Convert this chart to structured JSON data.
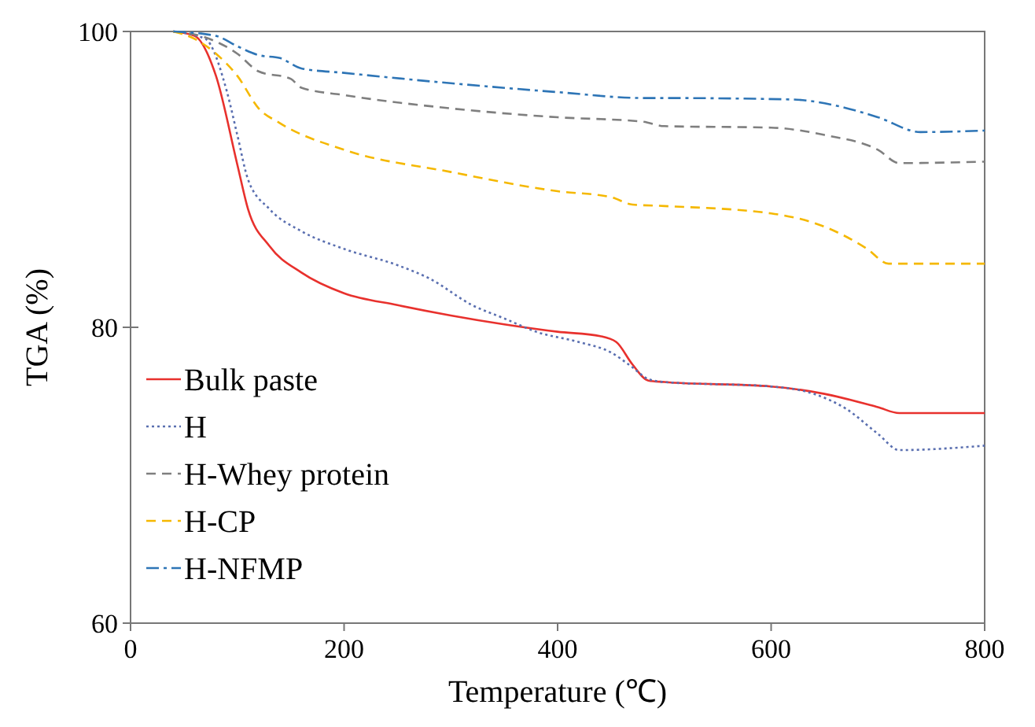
{
  "chart_data": {
    "type": "line",
    "xlabel": "Temperature (℃)",
    "ylabel": "TGA (%)",
    "xlim": [
      0,
      800
    ],
    "ylim": [
      60,
      100
    ],
    "xticks": [
      0,
      200,
      400,
      600,
      800
    ],
    "yticks": [
      60,
      80,
      100
    ],
    "grid": false,
    "legend": "bottom left",
    "marker": "none",
    "series": [
      {
        "name": "Bulk paste",
        "color": "#e8312d",
        "line_style": "solid",
        "x": [
          40,
          60,
          80,
          100,
          110,
          130,
          160,
          200,
          250,
          300,
          350,
          400,
          440,
          455,
          470,
          485,
          500,
          600,
          650,
          700,
          720,
          800
        ],
        "values": [
          100,
          99.7,
          97,
          91,
          88,
          85.5,
          83.7,
          82.3,
          81.5,
          80.8,
          80.2,
          79.7,
          79.4,
          79,
          77.5,
          76.4,
          76.3,
          76,
          75.5,
          74.6,
          74.2,
          74.2
        ]
      },
      {
        "name": "H",
        "color": "#5a6fb0",
        "line_style": "dotted",
        "x": [
          40,
          70,
          90,
          100,
          110,
          130,
          160,
          200,
          250,
          280,
          320,
          350,
          380,
          420,
          450,
          470,
          485,
          500,
          600,
          640,
          670,
          700,
          720,
          800
        ],
        "values": [
          100,
          99.5,
          96,
          93,
          90,
          88,
          86.5,
          85.3,
          84.2,
          83.3,
          81.5,
          80.6,
          79.7,
          79,
          78.3,
          77.3,
          76.5,
          76.3,
          76,
          75.5,
          74.5,
          72.8,
          71.7,
          72
        ]
      },
      {
        "name": "H-Whey protein",
        "color": "#7f7f7f",
        "line_style": "dashed",
        "x": [
          40,
          70,
          100,
          120,
          150,
          160,
          200,
          300,
          400,
          480,
          500,
          600,
          650,
          700,
          720,
          800
        ],
        "values": [
          100,
          99.6,
          98.5,
          97.3,
          96.8,
          96.2,
          95.7,
          94.8,
          94.2,
          93.9,
          93.6,
          93.5,
          93,
          92,
          91.1,
          91.2
        ]
      },
      {
        "name": "H-CP",
        "color": "#f5b800",
        "line_style": "dashed",
        "x": [
          40,
          60,
          80,
          100,
          120,
          140,
          200,
          300,
          400,
          450,
          470,
          500,
          600,
          650,
          690,
          710,
          800
        ],
        "values": [
          100,
          99.5,
          98.5,
          97,
          94.8,
          93.8,
          92,
          90.5,
          89.2,
          88.8,
          88.3,
          88.2,
          87.7,
          86.8,
          85.3,
          84.3,
          84.3
        ]
      },
      {
        "name": "H-NFMP",
        "color": "#2e75b6",
        "line_style": "dashdot",
        "x": [
          40,
          80,
          100,
          120,
          140,
          160,
          200,
          300,
          400,
          480,
          500,
          620,
          660,
          700,
          740,
          800
        ],
        "values": [
          100,
          99.7,
          99,
          98.4,
          98.2,
          97.5,
          97.2,
          96.5,
          95.9,
          95.5,
          95.5,
          95.4,
          95,
          94.2,
          93.2,
          93.3
        ]
      }
    ]
  }
}
